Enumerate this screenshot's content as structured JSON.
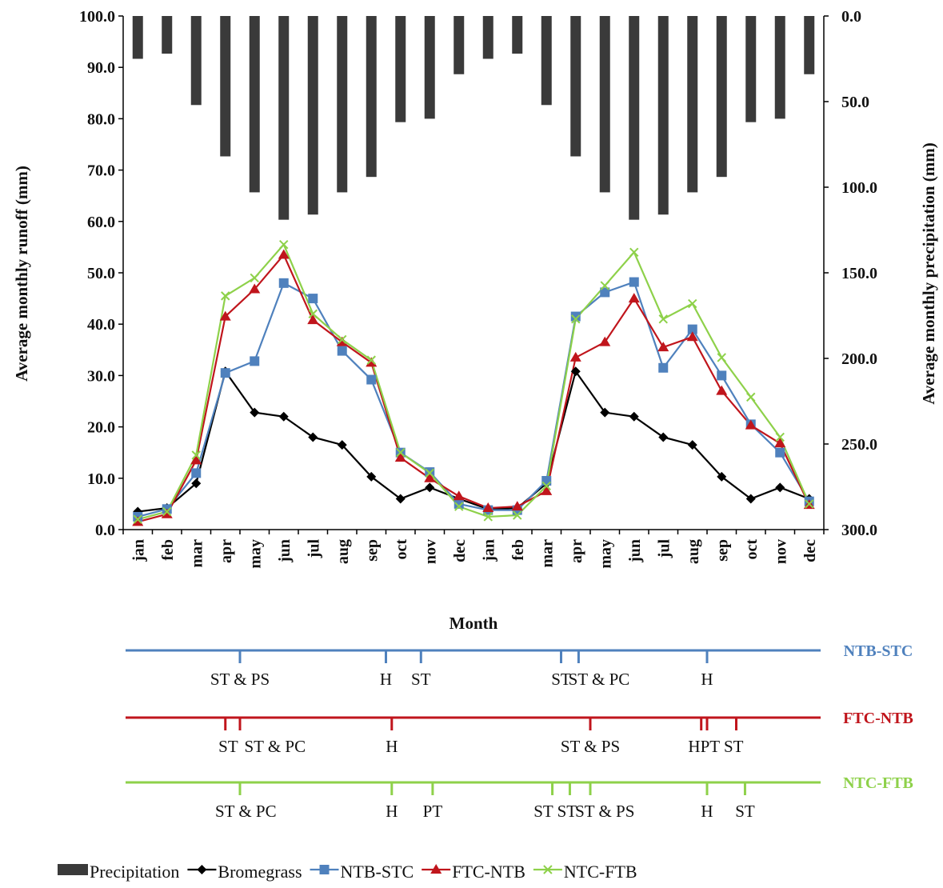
{
  "chart_data": {
    "type": "line",
    "xlabel": "Month",
    "ylabel_left": "Average monthly runoff (mm)",
    "ylabel_right": "Average monthly precipitation (mm)",
    "ylim_left": [
      0,
      100
    ],
    "ylim_right": [
      300,
      0
    ],
    "yticks_left": [
      "0.0",
      "10.0",
      "20.0",
      "30.0",
      "40.0",
      "50.0",
      "60.0",
      "70.0",
      "80.0",
      "90.0",
      "100.0"
    ],
    "yticks_right": [
      "300.0",
      "250.0",
      "200.0",
      "150.0",
      "100.0",
      "50.0",
      "0.0"
    ],
    "categories": [
      "jan",
      "feb",
      "mar",
      "apr",
      "may",
      "jun",
      "jul",
      "aug",
      "sep",
      "oct",
      "nov",
      "dec",
      "jan",
      "feb",
      "mar",
      "apr",
      "may",
      "jun",
      "jul",
      "aug",
      "sep",
      "oct",
      "nov",
      "dec"
    ],
    "legend_position": "bottom",
    "series": [
      {
        "name": "Precipitation",
        "kind": "bar",
        "axis": "right",
        "color": "#3a3a3a",
        "values": [
          25,
          22,
          52,
          82,
          103,
          119,
          116,
          103,
          94,
          62,
          60,
          34,
          25,
          22,
          52,
          82,
          103,
          119,
          116,
          103,
          94,
          62,
          60,
          34
        ]
      },
      {
        "name": "Bromegrass",
        "kind": "line",
        "marker": "diamond",
        "color": "#000000",
        "values": [
          3.5,
          4.2,
          9.0,
          30.8,
          22.8,
          22.0,
          18.0,
          16.5,
          10.3,
          6.0,
          8.2,
          6.0,
          4.0,
          4.2,
          9.0,
          30.8,
          22.8,
          22.0,
          18.0,
          16.5,
          10.3,
          6.0,
          8.2,
          6.0
        ]
      },
      {
        "name": "NTB-STC",
        "kind": "line",
        "marker": "square",
        "color": "#4f81bd",
        "values": [
          2.5,
          4.0,
          11.0,
          30.5,
          32.8,
          48.0,
          45.0,
          34.8,
          29.2,
          15.0,
          11.2,
          5.0,
          3.8,
          3.8,
          9.5,
          41.5,
          46.2,
          48.2,
          31.5,
          39.0,
          30.0,
          20.5,
          15.0,
          5.5
        ]
      },
      {
        "name": "FTC-NTB",
        "kind": "line",
        "marker": "triangle",
        "color": "#c0151c",
        "values": [
          1.5,
          3.0,
          13.5,
          41.5,
          46.8,
          53.5,
          40.8,
          36.5,
          32.5,
          14.0,
          10.0,
          6.5,
          4.2,
          4.5,
          7.5,
          33.5,
          36.5,
          45.0,
          35.5,
          37.5,
          27.0,
          20.3,
          16.8,
          4.8
        ]
      },
      {
        "name": "NTC-FTB",
        "kind": "line",
        "marker": "x",
        "color": "#8ed14a",
        "values": [
          2.0,
          3.5,
          14.5,
          45.5,
          49.0,
          55.5,
          42.0,
          37.0,
          33.0,
          15.0,
          11.0,
          4.5,
          2.5,
          2.8,
          8.5,
          41.0,
          47.5,
          54.0,
          41.0,
          44.0,
          33.5,
          25.8,
          18.0,
          5.0
        ]
      }
    ],
    "timelines": [
      {
        "name": "NTB-STC",
        "color": "#4f81bd",
        "ticks": [
          4.0,
          9.0,
          10.2,
          15.0,
          15.6,
          20.0
        ],
        "events": [
          {
            "label": "ST & PS",
            "x": 4.0
          },
          {
            "label": "H",
            "x": 9.0
          },
          {
            "label": "ST",
            "x": 10.2
          },
          {
            "label": "ST",
            "x": 15.0
          },
          {
            "label": "ST & PC",
            "x": 16.3
          },
          {
            "label": "H",
            "x": 20.0
          }
        ]
      },
      {
        "name": "FTC-NTB",
        "color": "#c0151c",
        "ticks": [
          3.5,
          4.0,
          9.2,
          16.0,
          19.8,
          20.0,
          21.0
        ],
        "events": [
          {
            "label": "ST",
            "x": 3.6
          },
          {
            "label": "ST & PC",
            "x": 5.2
          },
          {
            "label": "H",
            "x": 9.2
          },
          {
            "label": "ST & PS",
            "x": 16.0
          },
          {
            "label": "HPT ST",
            "x": 20.3
          }
        ]
      },
      {
        "name": "NTC-FTB",
        "color": "#8ed14a",
        "ticks": [
          4.0,
          9.2,
          10.6,
          14.7,
          15.3,
          16.0,
          20.0,
          21.3
        ],
        "events": [
          {
            "label": "ST & PC",
            "x": 4.2
          },
          {
            "label": "H",
            "x": 9.2
          },
          {
            "label": "PT",
            "x": 10.6
          },
          {
            "label": "ST ST",
            "x": 14.8
          },
          {
            "label": "ST & PS",
            "x": 16.5
          },
          {
            "label": "H",
            "x": 20.0
          },
          {
            "label": "ST",
            "x": 21.3
          }
        ]
      }
    ]
  }
}
